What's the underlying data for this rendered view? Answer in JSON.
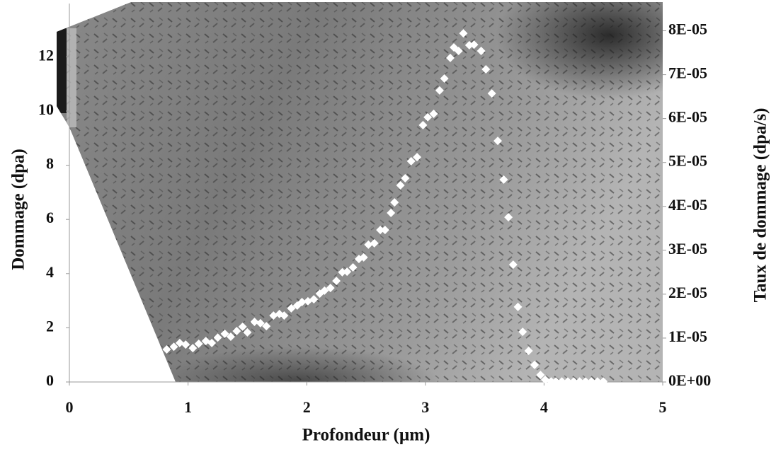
{
  "chart_data": {
    "type": "scatter",
    "x_label": "Profondeur (µm)",
    "y_label": "Dommage (dpa)",
    "y2_label": "Taux de dommage (dpa/s)",
    "x": [
      0.82,
      0.88,
      0.93,
      0.98,
      1.04,
      1.09,
      1.15,
      1.2,
      1.25,
      1.31,
      1.36,
      1.41,
      1.46,
      1.5,
      1.56,
      1.61,
      1.66,
      1.72,
      1.77,
      1.81,
      1.87,
      1.92,
      1.96,
      2.01,
      2.06,
      2.11,
      2.15,
      2.2,
      2.25,
      2.3,
      2.34,
      2.39,
      2.44,
      2.48,
      2.52,
      2.57,
      2.62,
      2.66,
      2.71,
      2.74,
      2.79,
      2.83,
      2.88,
      2.93,
      2.98,
      3.02,
      3.07,
      3.12,
      3.16,
      3.21,
      3.24,
      3.28,
      3.32,
      3.37,
      3.41,
      3.47,
      3.51,
      3.56,
      3.61,
      3.66,
      3.7,
      3.74,
      3.78,
      3.82,
      3.87,
      3.92,
      3.97,
      4.01,
      4.06,
      4.1,
      4.15,
      4.2,
      4.25,
      4.3,
      4.35,
      4.4,
      4.45,
      4.5
    ],
    "values": [
      1.2,
      1.3,
      1.44,
      1.38,
      1.25,
      1.41,
      1.51,
      1.44,
      1.64,
      1.78,
      1.67,
      1.88,
      2.04,
      1.83,
      2.22,
      2.17,
      2.06,
      2.45,
      2.51,
      2.45,
      2.72,
      2.82,
      2.95,
      2.98,
      3.05,
      3.26,
      3.37,
      3.47,
      3.73,
      4.05,
      4.07,
      4.23,
      4.54,
      4.6,
      5.07,
      5.12,
      5.61,
      5.61,
      6.24,
      6.63,
      7.26,
      7.52,
      8.15,
      8.3,
      9.48,
      9.77,
      9.9,
      10.76,
      11.2,
      11.96,
      12.35,
      12.22,
      12.87,
      12.43,
      12.45,
      12.22,
      11.54,
      10.65,
      8.9,
      7.47,
      6.08,
      4.33,
      2.77,
      1.85,
      1.15,
      0.63,
      0.26,
      0.08,
      0.02,
      0.02,
      0.02,
      0.02,
      0.02,
      0.02,
      0.02,
      0.02,
      0.02,
      0.02
    ],
    "color": "#ffffff",
    "xlim": [
      0,
      5
    ],
    "xticks": [
      0,
      1,
      2,
      3,
      4,
      5
    ],
    "ylim": [
      0,
      14
    ],
    "yticks": [
      0,
      2,
      4,
      6,
      8,
      10,
      12
    ],
    "y2lim": [
      0,
      8.64e-05
    ],
    "y2ticks": [
      {
        "value": 0,
        "label": "0E+00"
      },
      {
        "value": 1e-05,
        "label": "1E-05"
      },
      {
        "value": 2e-05,
        "label": "2E-05"
      },
      {
        "value": 3e-05,
        "label": "3E-05"
      },
      {
        "value": 4e-05,
        "label": "4E-05"
      },
      {
        "value": 5e-05,
        "label": "5E-05"
      },
      {
        "value": 6e-05,
        "label": "6E-05"
      },
      {
        "value": 7e-05,
        "label": "7E-05"
      },
      {
        "value": 8e-05,
        "label": "8E-05"
      }
    ]
  }
}
